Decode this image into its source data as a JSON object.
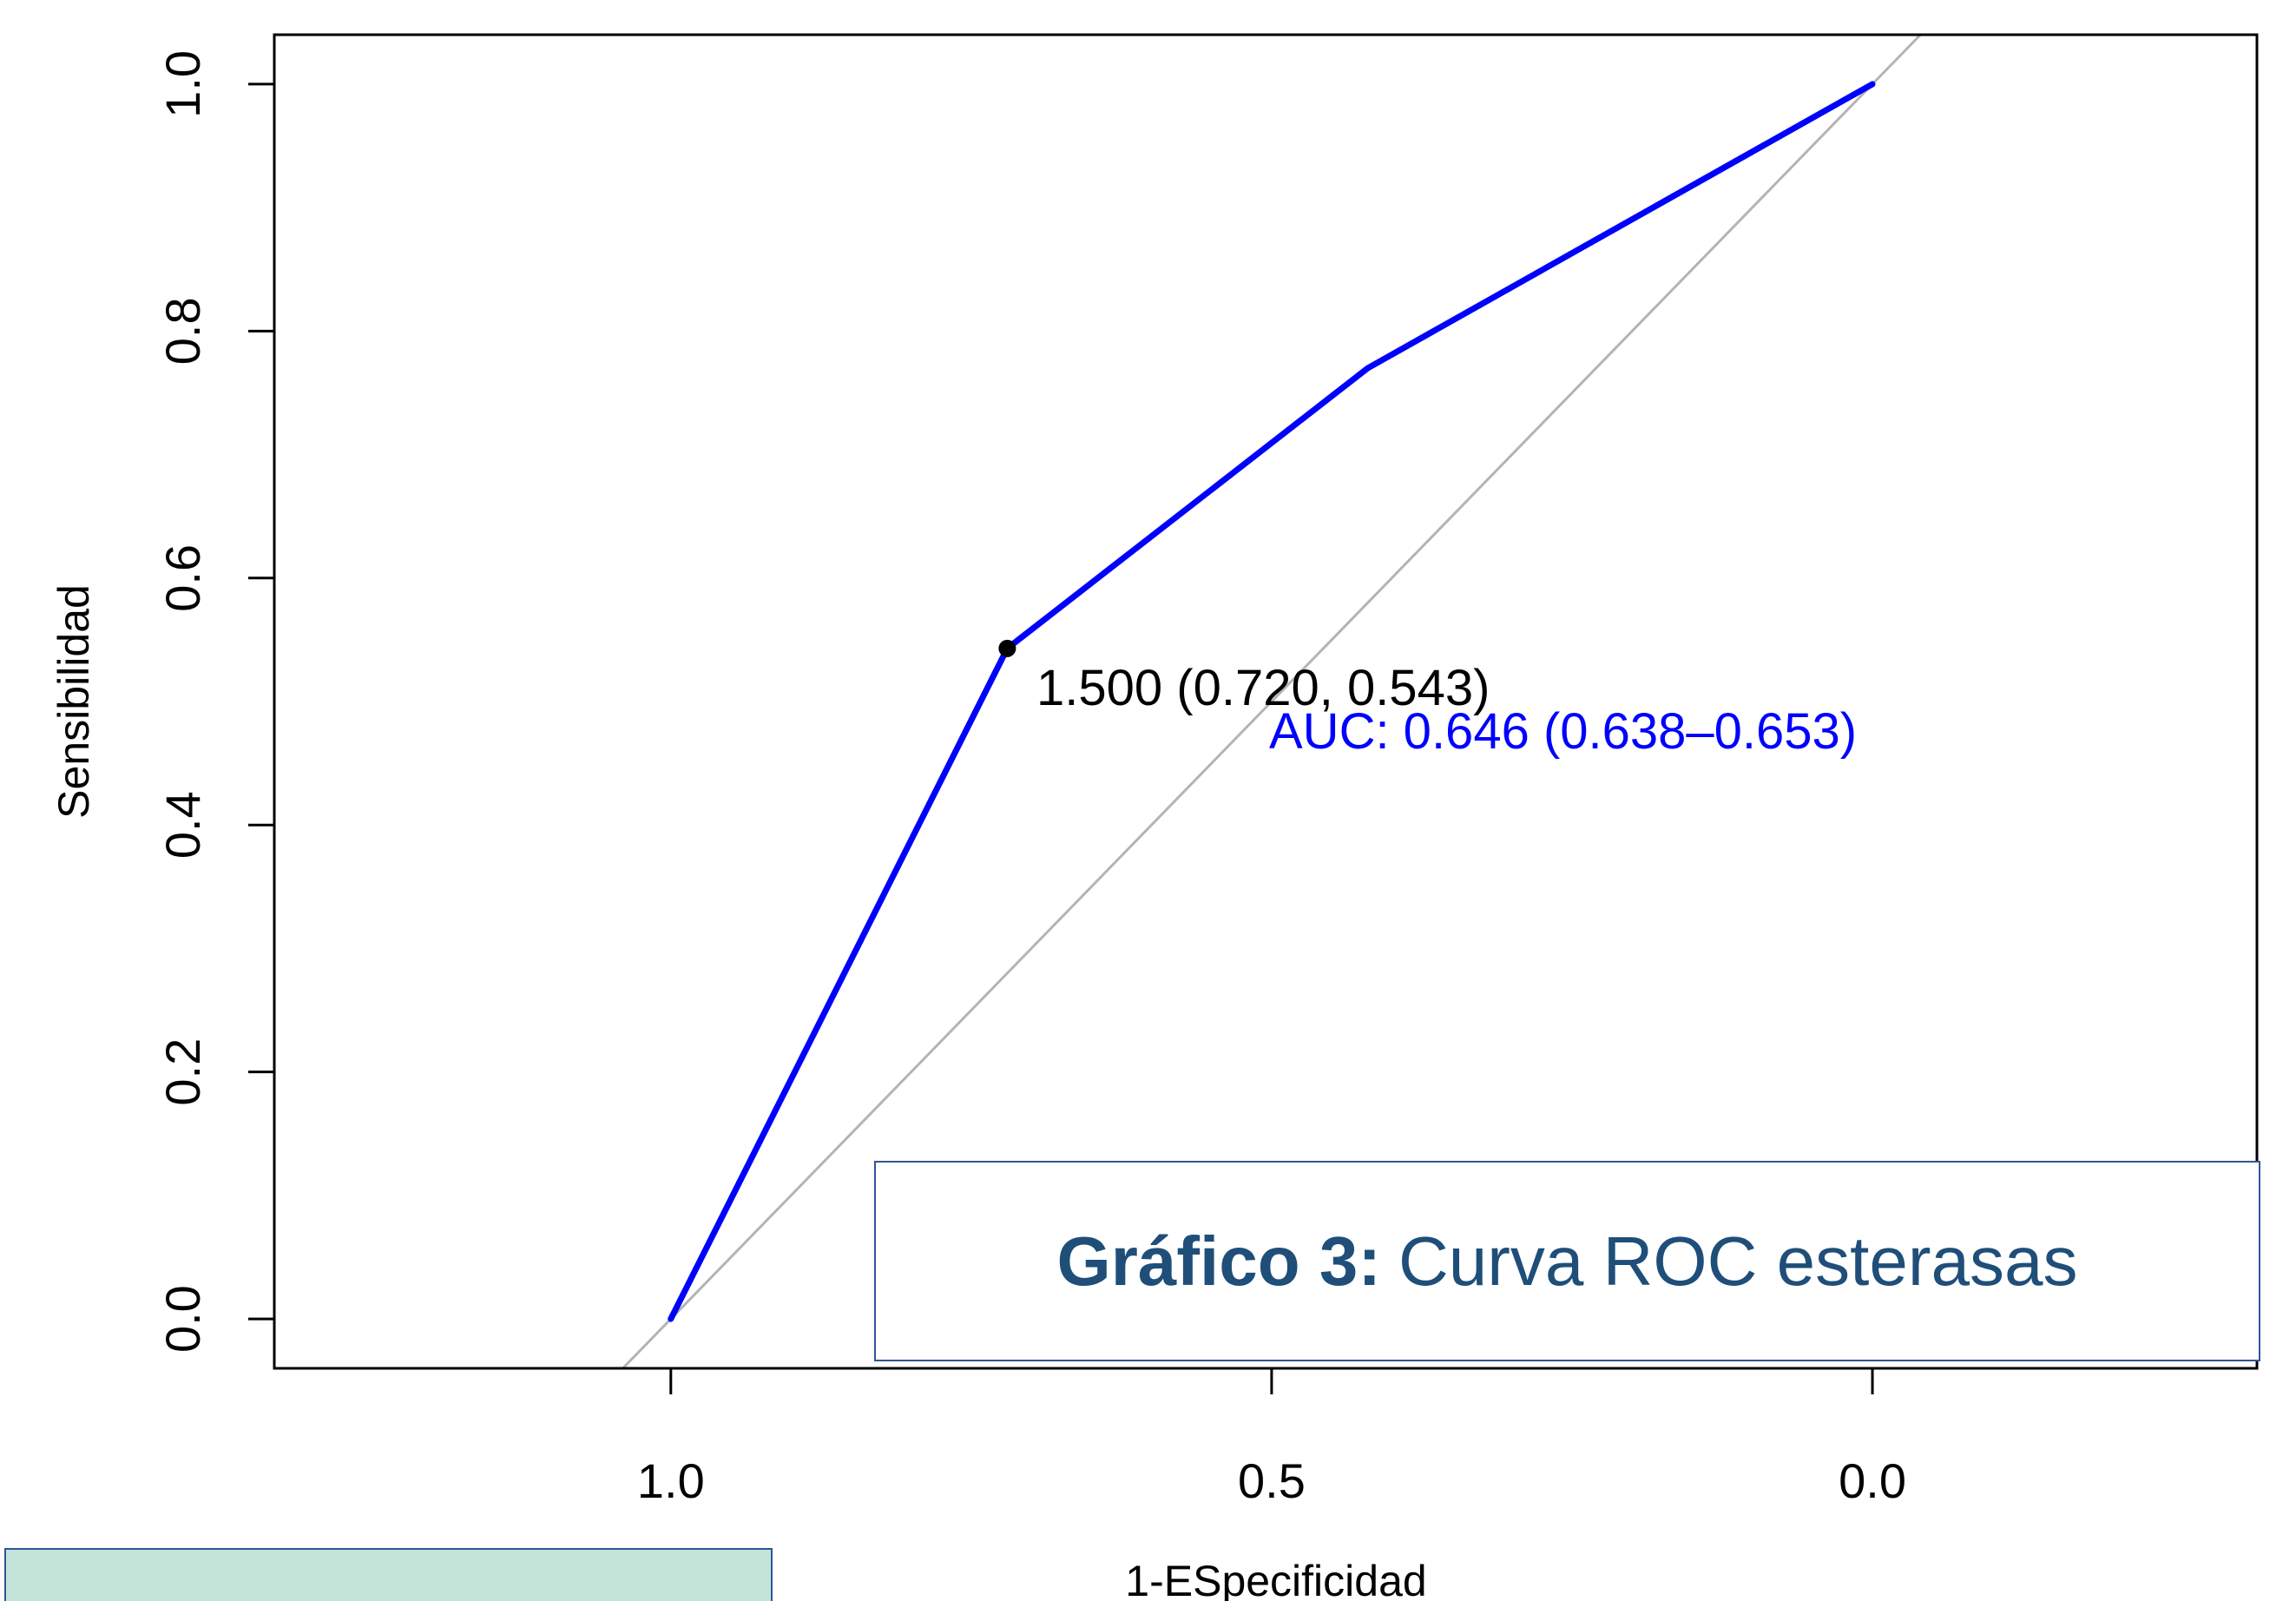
{
  "chart_data": {
    "type": "line",
    "xlabel": "1-ESpecificidad",
    "ylabel": "Sensibilidad",
    "xlim": [
      1.33,
      -0.32
    ],
    "ylim": [
      -0.04,
      1.04
    ],
    "x_ticks": [
      1.0,
      0.5,
      0.0
    ],
    "x_tick_labels": [
      "1.0",
      "0.5",
      "0.0"
    ],
    "y_ticks": [
      0.0,
      0.2,
      0.4,
      0.6,
      0.8,
      1.0
    ],
    "y_tick_labels": [
      "0.0",
      "0.2",
      "0.4",
      "0.6",
      "0.8",
      "1.0"
    ],
    "series": [
      {
        "color": "#0000ff",
        "x": [
          1.0,
          0.72,
          0.42,
          0.0
        ],
        "y": [
          0.0,
          0.543,
          0.77,
          1.0
        ]
      }
    ],
    "reference_line": {
      "color": "#b4b4b4",
      "x": [
        1.0,
        0.0
      ],
      "y": [
        0.0,
        1.0
      ]
    },
    "threshold_point": {
      "x": 0.72,
      "y": 0.543,
      "label": "1.500 (0.720, 0.543)",
      "color": "#000000"
    },
    "auc_label": {
      "text": "AUC: 0.646 (0.638–0.653)",
      "color": "#0000ff"
    },
    "grid": false
  },
  "caption": {
    "bold": "Gráfico 3:",
    "text": "Curva ROC esterasas"
  }
}
